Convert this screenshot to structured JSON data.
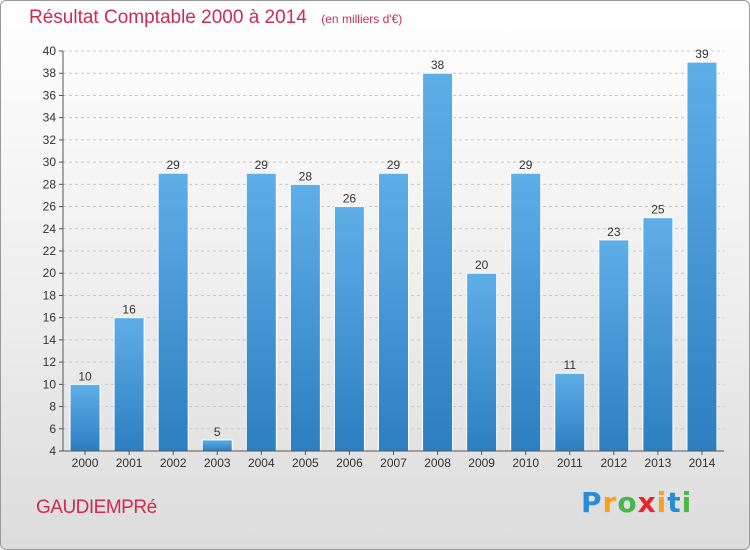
{
  "header": {
    "title": "Résultat Comptable 2000 à 2014",
    "unit_note": "(en milliers d'€)"
  },
  "footer": {
    "commune": "GAUDIEMPRé",
    "brand": "Proxiti",
    "brand_letters": [
      {
        "char": "P",
        "color": "#2a8bd6"
      },
      {
        "char": "r",
        "color": "#ff9e1b"
      },
      {
        "char": "o",
        "color": "#49b54a"
      },
      {
        "char": "x",
        "color": "#e8262a"
      },
      {
        "char": "i",
        "color": "#ff9e1b"
      },
      {
        "char": "t",
        "color": "#2a8bd6"
      },
      {
        "char": "i",
        "color": "#49b54a"
      }
    ]
  },
  "chart_data": {
    "type": "bar",
    "title": "Résultat Comptable 2000 à 2014",
    "subtitle": "(en milliers d'€)",
    "categories": [
      "2000",
      "2001",
      "2002",
      "2003",
      "2004",
      "2005",
      "2006",
      "2007",
      "2008",
      "2009",
      "2010",
      "2011",
      "2012",
      "2013",
      "2014"
    ],
    "values": [
      10,
      16,
      29,
      5,
      29,
      28,
      26,
      29,
      38,
      20,
      29,
      11,
      23,
      25,
      39
    ],
    "ylim": [
      4,
      40
    ],
    "yticks": [
      4,
      6,
      8,
      10,
      12,
      14,
      16,
      18,
      20,
      22,
      24,
      26,
      28,
      30,
      32,
      34,
      36,
      38,
      40
    ],
    "grid": true,
    "bar_color_top": "#5eaee8",
    "bar_color_bottom": "#2c7fc0",
    "label_color": "#333333",
    "axis_color": "#555555",
    "grid_color": "#c8c8c8"
  }
}
